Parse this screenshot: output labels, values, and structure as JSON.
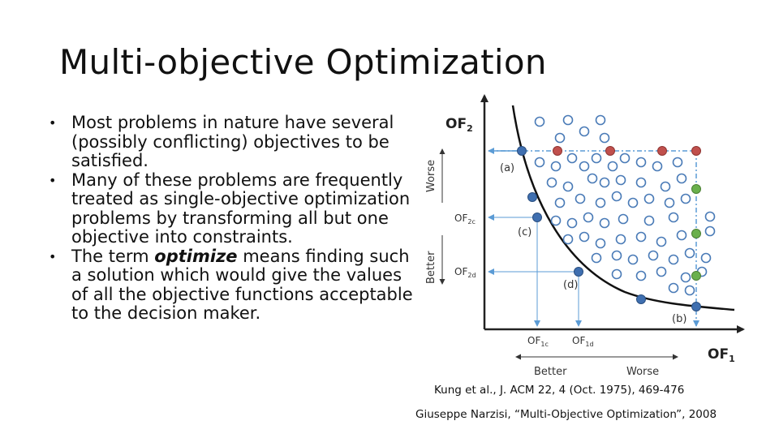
{
  "slide": {
    "title": "Multi-objective Optimization",
    "bullets": [
      {
        "text": "Most problems in nature have several (possibly conflicting) objectives to be satisfied."
      },
      {
        "text": "Many of these problems are frequently treated as single-objective optimization problems by transforming all but one objective into constraints."
      },
      {
        "pre": "The term ",
        "em": "optimize",
        "post": " means finding such a solution which would give the values of all the objective functions acceptable to the decision maker."
      }
    ],
    "bullet_char": "•",
    "citations": [
      "Kung et al., J. ACM 22, 4 (Oct. 1975), 469-476",
      "Giuseppe Narzisi, “Multi-Objective Optimization”, 2008"
    ]
  },
  "figure": {
    "y_axis_title": "OF",
    "y_axis_sub": "2",
    "x_axis_title": "OF",
    "x_axis_sub": "1",
    "y_worse": "Worse",
    "y_better": "Better",
    "x_better": "Better",
    "x_worse": "Worse",
    "of2c": "OF",
    "of2c_sub": "2c",
    "of2d": "OF",
    "of2d_sub": "2d",
    "of1c": "OF",
    "of1c_sub": "1c",
    "of1d": "OF",
    "of1d_sub": "1d",
    "label_a": "(a)",
    "label_b": "(b)",
    "label_c": "(c)",
    "label_d": "(d)",
    "colors": {
      "axis": "#222222",
      "front": "#111111",
      "circle": "#4a7bb7",
      "blue": "#3f6fb0",
      "red": "#c0504d",
      "green": "#6ab04c",
      "guide": "#5b9bd5"
    }
  }
}
